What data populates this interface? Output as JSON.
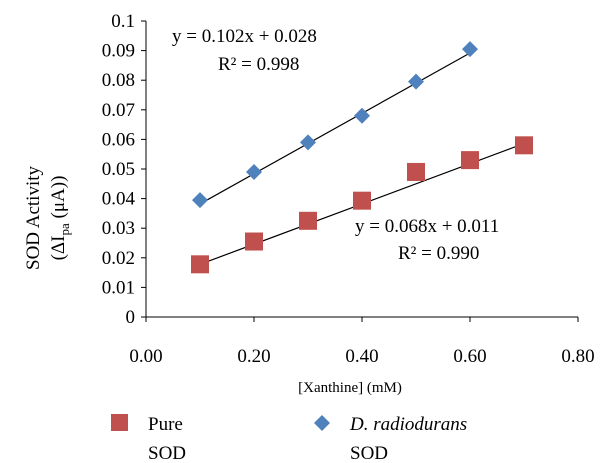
{
  "chart_data": {
    "type": "scatter",
    "xlabel": "[Xanthine] (mM)",
    "ylabel_line1": "SOD Activity",
    "ylabel_line2_pre": "(ΔI",
    "ylabel_line2_sub": "pa",
    "ylabel_line2_post": " (μA))",
    "xlim": [
      0,
      0.8
    ],
    "ylim": [
      0,
      0.1
    ],
    "x_ticks": [
      "0.00",
      "0.20",
      "0.40",
      "0.60",
      "0.80"
    ],
    "y_ticks": [
      "0",
      "0.01",
      "0.02",
      "0.03",
      "0.04",
      "0.05",
      "0.06",
      "0.07",
      "0.08",
      "0.09",
      "0.1"
    ],
    "grid": false,
    "legend_position": "bottom",
    "series": [
      {
        "name_line1": "D. radiodurans",
        "name_line2": "SOD",
        "marker": "diamond",
        "color": "#4F81BD",
        "x": [
          0.1,
          0.2,
          0.3,
          0.4,
          0.5,
          0.6
        ],
        "y": [
          0.0395,
          0.049,
          0.059,
          0.068,
          0.0795,
          0.0905
        ],
        "trendline": {
          "slope": 0.102,
          "intercept": 0.028,
          "x_range": [
            0.1,
            0.6
          ]
        },
        "equation": "y = 0.102x + 0.028",
        "r2": "R² = 0.998"
      },
      {
        "name_line1": "Pure",
        "name_line2": "SOD",
        "marker": "square",
        "color": "#C0504D",
        "x": [
          0.1,
          0.2,
          0.3,
          0.4,
          0.5,
          0.6,
          0.7
        ],
        "y": [
          0.0178,
          0.0255,
          0.0325,
          0.0393,
          0.049,
          0.053,
          0.058
        ],
        "trendline": {
          "slope": 0.068,
          "intercept": 0.011,
          "x_range": [
            0.1,
            0.7
          ]
        },
        "equation": "y = 0.068x + 0.011",
        "r2": "R² = 0.990"
      }
    ]
  }
}
